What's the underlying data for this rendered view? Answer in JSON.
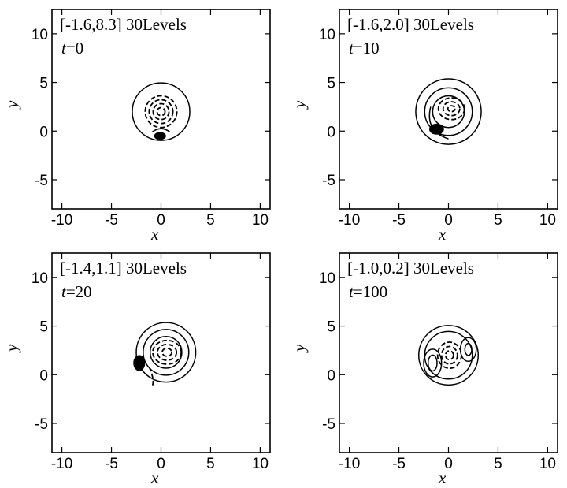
{
  "chart_data": [
    {
      "type": "contour",
      "range_label": "[-1.6,8.3] 30Levels",
      "time_label": "t",
      "time_value": "=0",
      "xlabel": "x",
      "ylabel": "y",
      "xlim": [
        -11,
        11
      ],
      "ylim": [
        -8,
        12.5
      ],
      "xticks": [
        "-10",
        "-5",
        "0",
        "5",
        "10"
      ],
      "yticks": [
        "10",
        "5",
        "0",
        "-5"
      ],
      "stage": 0
    },
    {
      "type": "contour",
      "range_label": "[-1.6,2.0] 30Levels",
      "time_label": "t",
      "time_value": "=10",
      "xlabel": "x",
      "ylabel": "y",
      "xlim": [
        -11,
        11
      ],
      "ylim": [
        -8,
        12.5
      ],
      "xticks": [
        "-10",
        "-5",
        "0",
        "5",
        "10"
      ],
      "yticks": [
        "10",
        "5",
        "0",
        "-5"
      ],
      "stage": 1
    },
    {
      "type": "contour",
      "range_label": "[-1.4,1.1] 30Levels",
      "time_label": "t",
      "time_value": "=20",
      "xlabel": "x",
      "ylabel": "y",
      "xlim": [
        -11,
        11
      ],
      "ylim": [
        -8,
        12.5
      ],
      "xticks": [
        "-10",
        "-5",
        "0",
        "5",
        "10"
      ],
      "yticks": [
        "10",
        "5",
        "0",
        "-5"
      ],
      "stage": 2
    },
    {
      "type": "contour",
      "range_label": "[-1.0,0.2] 30Levels",
      "time_label": "t",
      "time_value": "=100",
      "xlabel": "x",
      "ylabel": "y",
      "xlim": [
        -11,
        11
      ],
      "ylim": [
        -8,
        12.5
      ],
      "xticks": [
        "-10",
        "-5",
        "0",
        "5",
        "10"
      ],
      "yticks": [
        "10",
        "5",
        "0",
        "-5"
      ],
      "stage": 3
    }
  ]
}
